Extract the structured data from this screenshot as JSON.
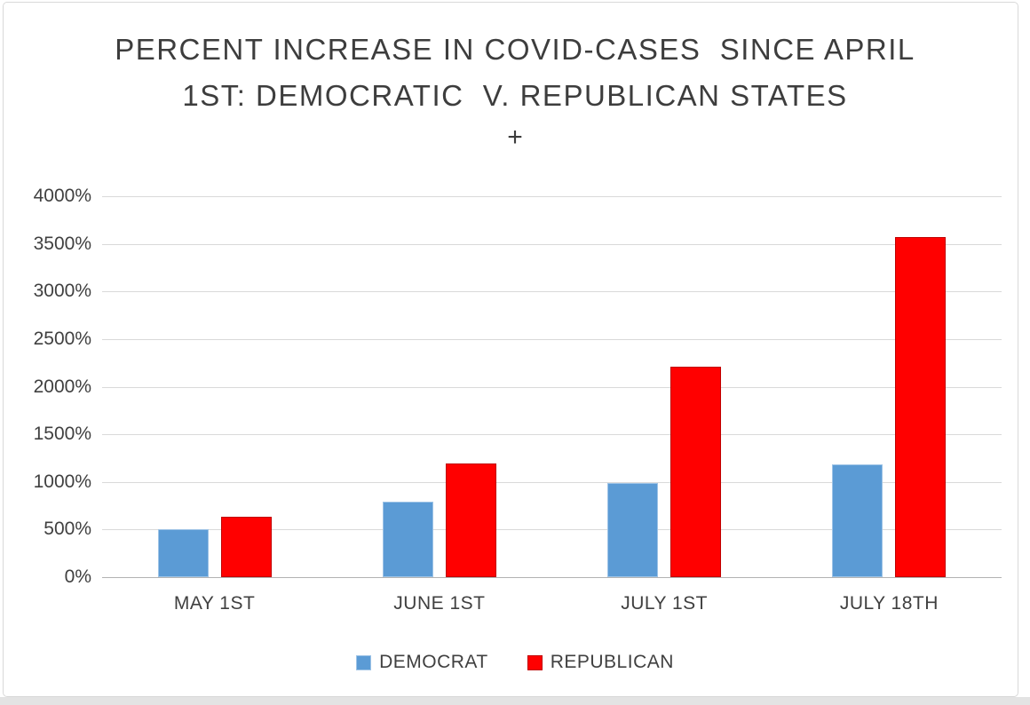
{
  "page": {
    "background": "#ffffff",
    "frame_border_color": "#d9d9d9",
    "bottom_strip_color": "#e3e3e3"
  },
  "chart_data": {
    "type": "bar",
    "title_line1": "PERCENT INCREASE IN COVID-CASES  SINCE APRIL",
    "title_line2": "1ST: DEMOCRATIC  V. REPUBLICAN STATES",
    "title_line3": "+",
    "categories": [
      "MAY 1ST",
      "JUNE 1ST",
      "JULY 1ST",
      "JULY 18TH"
    ],
    "series": [
      {
        "name": "DEMOCRAT",
        "color": "#5B9BD5",
        "border_color": "#9DC3E6",
        "values": [
          500,
          790,
          990,
          1180
        ]
      },
      {
        "name": "REPUBLICAN",
        "color": "#FF0000",
        "border_color": "#C00000",
        "values": [
          630,
          1190,
          2210,
          3575
        ]
      }
    ],
    "y_min": 0,
    "y_max": 4000,
    "y_step": 500,
    "y_tick_labels": [
      "0%",
      "500%",
      "1000%",
      "1500%",
      "2000%",
      "2500%",
      "3000%",
      "3500%",
      "4000%"
    ],
    "xlabel": "",
    "ylabel": "",
    "grid": "on",
    "legend_position": "bottom",
    "text_color": "#404040",
    "grid_color": "#D9D9D9",
    "axis_color": "#B3B3B3"
  }
}
